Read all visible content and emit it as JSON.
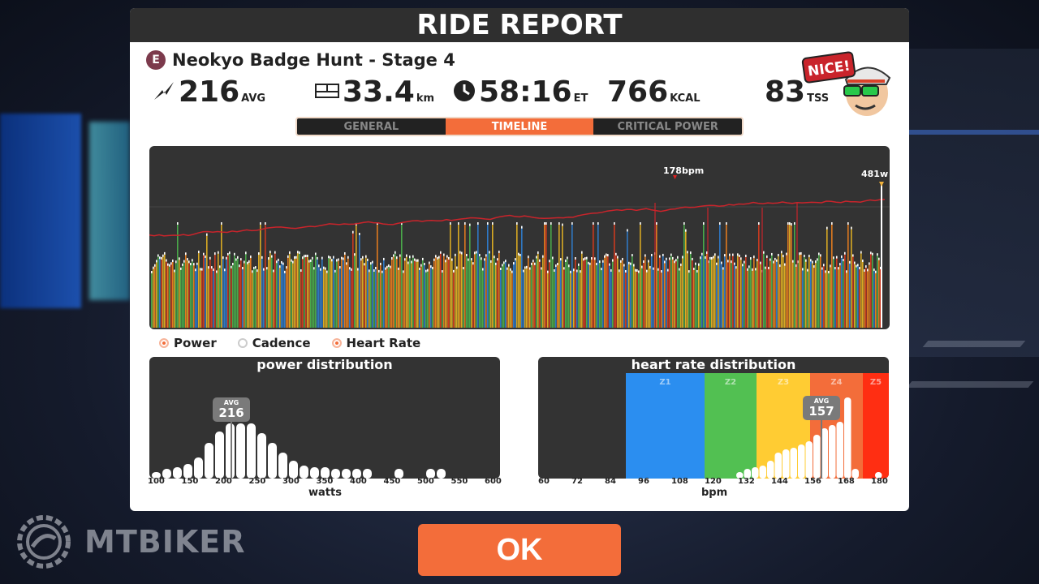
{
  "dialog": {
    "title": "RIDE REPORT",
    "route_badge": "E",
    "route_name": "Neokyo Badge Hunt - Stage 4",
    "ok_label": "OK",
    "mascot_text": "NICE!"
  },
  "stats": {
    "power": {
      "value": "216",
      "unit": "AVG",
      "icon": "power-bolt-icon"
    },
    "distance": {
      "value": "33.4",
      "unit": "km",
      "icon": "odometer-icon"
    },
    "time": {
      "value": "58:16",
      "unit": "ET",
      "icon": "clock-icon"
    },
    "calories": {
      "value": "766",
      "unit": "KCAL"
    },
    "tss": {
      "value": "83",
      "unit": "TSS"
    }
  },
  "tabs": [
    {
      "label": "GENERAL",
      "active": false
    },
    {
      "label": "TIMELINE",
      "active": true
    },
    {
      "label": "CRITICAL POWER",
      "active": false
    }
  ],
  "timeline": {
    "hr_peak_label": "178bpm",
    "power_peak_label": "481w",
    "hr_line_color": "#c9242b",
    "zone_colors": {
      "blue": "#2f78c4",
      "green": "#4aa84a",
      "yellow": "#d8a923",
      "orange": "#e07a1f",
      "red": "#cc3a1f"
    }
  },
  "legend": [
    {
      "label": "Power",
      "on": true
    },
    {
      "label": "Cadence",
      "on": false
    },
    {
      "label": "Heart Rate",
      "on": true
    }
  ],
  "power_distribution": {
    "title": "power distribution",
    "avg_label": "AVG",
    "avg_value": "216",
    "x_title": "watts",
    "ticks": [
      "100",
      "150",
      "200",
      "250",
      "300",
      "350",
      "400",
      "450",
      "500",
      "550",
      "600"
    ]
  },
  "hr_distribution": {
    "title": "heart rate distribution",
    "avg_label": "AVG",
    "avg_value": "157",
    "x_title": "bpm",
    "ticks": [
      "60",
      "72",
      "84",
      "96",
      "108",
      "120",
      "132",
      "144",
      "156",
      "168",
      "180"
    ],
    "zones": [
      {
        "label": "Z1",
        "color": "#2b8ef0"
      },
      {
        "label": "Z2",
        "color": "#52c052"
      },
      {
        "label": "Z3",
        "color": "#ffcc33"
      },
      {
        "label": "Z4",
        "color": "#f36d3a"
      },
      {
        "label": "Z5",
        "color": "#ff2e12"
      }
    ]
  },
  "watermark": "MTBIKER"
}
